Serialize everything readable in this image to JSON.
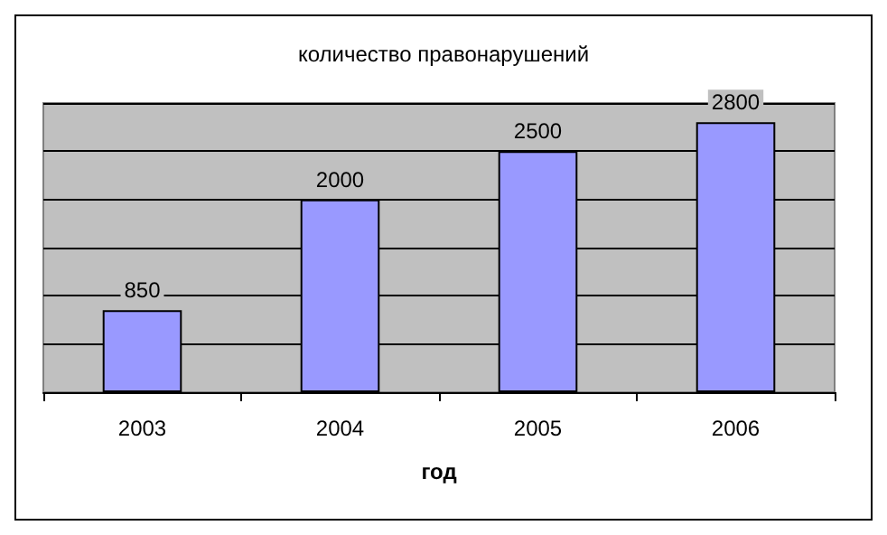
{
  "chart_data": {
    "type": "bar",
    "title": "количество правонарушений",
    "xlabel": "год",
    "categories": [
      "2003",
      "2004",
      "2005",
      "2006"
    ],
    "values": [
      850,
      2000,
      2500,
      2800
    ],
    "color": "#9999ff",
    "ylim": [
      0,
      3000
    ],
    "yticks": [
      {
        "value": 0,
        "label": null
      },
      {
        "value": 500,
        "label": null
      },
      {
        "value": 1000,
        "label": null
      },
      {
        "value": 1500,
        "label": null
      },
      {
        "value": 2000,
        "label": null
      },
      {
        "value": 2500,
        "label": null
      },
      {
        "value": 3000,
        "label": null
      }
    ],
    "grid": "y",
    "tick_labels": "x",
    "data_labels": true
  }
}
